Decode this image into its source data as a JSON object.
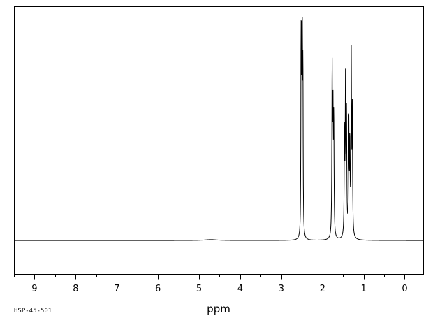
{
  "chart_data": {
    "type": "line",
    "title": "",
    "xlabel": "ppm",
    "ylabel": "",
    "xlim": [
      9.5,
      -0.45
    ],
    "ylim": [
      -0.15,
      1.05
    ],
    "x_reversed": true,
    "grid": false,
    "x_ticks": [
      9,
      8,
      7,
      6,
      5,
      4,
      3,
      2,
      1,
      0
    ],
    "x_minor_step": 0.5,
    "baseline": 0,
    "peaks": [
      {
        "x": 4.71,
        "y": 0.004,
        "w": 0.18
      },
      {
        "x": 2.52,
        "y": 0.87,
        "w": 0.006
      },
      {
        "x": 2.505,
        "y": 0.72,
        "w": 0.006
      },
      {
        "x": 2.49,
        "y": 0.99,
        "w": 0.006
      },
      {
        "x": 2.475,
        "y": 0.7,
        "w": 0.006
      },
      {
        "x": 1.765,
        "y": 0.73,
        "w": 0.008
      },
      {
        "x": 1.745,
        "y": 0.53,
        "w": 0.008
      },
      {
        "x": 1.725,
        "y": 0.5,
        "w": 0.008
      },
      {
        "x": 1.465,
        "y": 0.45,
        "w": 0.008
      },
      {
        "x": 1.44,
        "y": 0.67,
        "w": 0.008
      },
      {
        "x": 1.415,
        "y": 0.52,
        "w": 0.008
      },
      {
        "x": 1.36,
        "y": 0.52,
        "w": 0.008
      },
      {
        "x": 1.335,
        "y": 0.39,
        "w": 0.008
      },
      {
        "x": 1.3,
        "y": 0.79,
        "w": 0.008
      },
      {
        "x": 1.275,
        "y": 0.55,
        "w": 0.008
      }
    ]
  },
  "footer": {
    "code": "HSP-45-501"
  }
}
